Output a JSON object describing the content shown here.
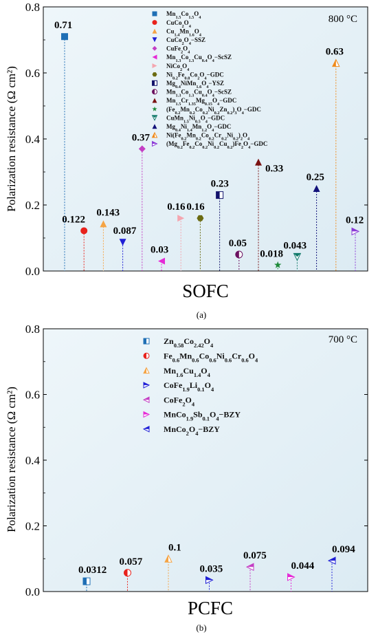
{
  "chart_data": [
    {
      "type": "scatter",
      "panel_label": "(a)",
      "xlabel": "SOFC",
      "ylabel": "Polarization resistance (Ω cm²)",
      "ylim": [
        0,
        0.8
      ],
      "yticks": [
        "0.0",
        "0.2",
        "0.4",
        "0.6",
        "0.8"
      ],
      "annotation": "800 °C",
      "grid": false,
      "legend_position": "top-center",
      "series": [
        {
          "name": "Mn1.5Co1.5O4",
          "label_html": "Mn<tspan baseline-shift='sub' font-size='70%'>1.5</tspan>Co<tspan baseline-shift='sub' font-size='70%'>1.5</tspan>O<tspan baseline-shift='sub' font-size='70%'>4</tspan>",
          "value": 0.71,
          "value_label": "0.71",
          "color": "#1f6fb5",
          "marker": "square"
        },
        {
          "name": "CuCo2O4",
          "label_html": "CuCo<tspan baseline-shift='sub' font-size='70%'>2</tspan>O<tspan baseline-shift='sub' font-size='70%'>4</tspan>",
          "value": 0.122,
          "value_label": "0.122",
          "color": "#e8221c",
          "marker": "circle"
        },
        {
          "name": "Cu1.4Mn1.6O4",
          "label_html": "Cu<tspan baseline-shift='sub' font-size='70%'>1.4</tspan>Mn<tspan baseline-shift='sub' font-size='70%'>1.6</tspan>O<tspan baseline-shift='sub' font-size='70%'>4</tspan>",
          "value": 0.143,
          "value_label": "0.143",
          "color": "#f5a445",
          "marker": "triangle-up"
        },
        {
          "name": "CuCo2O4−SSZ",
          "label_html": "CuCo<tspan baseline-shift='sub' font-size='70%'>2</tspan>O<tspan baseline-shift='sub' font-size='70%'>4</tspan>−SSZ",
          "value": 0.087,
          "value_label": "0.087",
          "color": "#1f1fd6",
          "marker": "triangle-down"
        },
        {
          "name": "CuFe2O4",
          "label_html": "CuFe<tspan baseline-shift='sub' font-size='70%'>2</tspan>O<tspan baseline-shift='sub' font-size='70%'>4</tspan>",
          "value": 0.37,
          "value_label": "0.37",
          "color": "#c43fc4",
          "marker": "diamond"
        },
        {
          "name": "Mn1.3Co1.3Cu0.4O4−ScSZ",
          "label_html": "Mn<tspan baseline-shift='sub' font-size='70%'>1.3</tspan>Co<tspan baseline-shift='sub' font-size='70%'>1.3</tspan>Cu<tspan baseline-shift='sub' font-size='70%'>0.4</tspan>O<tspan baseline-shift='sub' font-size='70%'>4</tspan>−ScSZ",
          "value": 0.03,
          "value_label": "0.03",
          "color": "#e52ad6",
          "marker": "triangle-left"
        },
        {
          "name": "NiCo2O4",
          "label_html": "NiCo<tspan baseline-shift='sub' font-size='70%'>2</tspan>O<tspan baseline-shift='sub' font-size='70%'>4</tspan>",
          "value": 0.16,
          "value_label": "0.16",
          "color": "#f4a6b0",
          "marker": "triangle-right"
        },
        {
          "name": "Ni0.2Fe0.8Co2O4−GDC",
          "label_html": "Ni<tspan baseline-shift='sub' font-size='70%'>0.2</tspan>Fe<tspan baseline-shift='sub' font-size='70%'>0.8</tspan>Co<tspan baseline-shift='sub' font-size='70%'>2</tspan>O<tspan baseline-shift='sub' font-size='70%'>4</tspan>−GDC",
          "value": 0.16,
          "value_label": "0.16",
          "color": "#6b6b12",
          "marker": "hexagon"
        },
        {
          "name": "Mg0.4NiMn1.6O4−YSZ",
          "label_html": "Mg<tspan baseline-shift='sub' font-size='70%'>0.4</tspan>NiMn<tspan baseline-shift='sub' font-size='70%'>1.6</tspan>O<tspan baseline-shift='sub' font-size='70%'>4</tspan>−YSZ",
          "value": 0.23,
          "value_label": "0.23",
          "color": "#12126b",
          "marker": "square-half"
        },
        {
          "name": "Mn1.3Co1.3Cu0.4O4−ScSZ",
          "label_html": "Mn<tspan baseline-shift='sub' font-size='70%'>1.3</tspan>Co<tspan baseline-shift='sub' font-size='70%'>1.3</tspan>Cu<tspan baseline-shift='sub' font-size='70%'>0.4</tspan>O<tspan baseline-shift='sub' font-size='70%'>4</tspan>−ScSZ",
          "value": 0.05,
          "value_label": "0.05",
          "color": "#6b1260",
          "marker": "circle-half"
        },
        {
          "name": "Mn1.5Cr1.35Mg0.15O4−GDC",
          "label_html": "Mn<tspan baseline-shift='sub' font-size='70%'>1.5</tspan>Cr<tspan baseline-shift='sub' font-size='70%'>1.35</tspan>Mg<tspan baseline-shift='sub' font-size='70%'>0.15</tspan>O<tspan baseline-shift='sub' font-size='70%'>4</tspan>−GDC",
          "value": 0.33,
          "value_label": "0.33",
          "color": "#7a1212",
          "marker": "triangle-up"
        },
        {
          "name": "(Fe0.2Mn0.2Co0.2Ni0.2Zn0.2)3O4−GDC",
          "label_html": "(Fe<tspan baseline-shift='sub' font-size='70%'>0.2</tspan>Mn<tspan baseline-shift='sub' font-size='70%'>0.2</tspan>Co<tspan baseline-shift='sub' font-size='70%'>0.2</tspan>Ni<tspan baseline-shift='sub' font-size='70%'>0.2</tspan>Zn<tspan baseline-shift='sub' font-size='70%'>0.2</tspan>)<tspan baseline-shift='sub' font-size='70%'>3</tspan>O<tspan baseline-shift='sub' font-size='70%'>4</tspan>−GDC",
          "value": 0.018,
          "value_label": "0.018",
          "color": "#1e8a3a",
          "marker": "star"
        },
        {
          "name": "CuMn1.5Ni0.5O4−GDC",
          "label_html": "CuMn<tspan baseline-shift='sub' font-size='70%'>1.5</tspan>Ni<tspan baseline-shift='sub' font-size='70%'>0.5</tspan>O<tspan baseline-shift='sub' font-size='70%'>4</tspan>−GDC",
          "value": 0.043,
          "value_label": "0.043",
          "color": "#127a6b",
          "marker": "half-down"
        },
        {
          "name": "Mg0.4Ni1.4Mn1.2O4−GDC",
          "label_html": "Mg<tspan baseline-shift='sub' font-size='70%'>0.4</tspan>Ni<tspan baseline-shift='sub' font-size='70%'>1.4</tspan>Mn<tspan baseline-shift='sub' font-size='70%'>1.2</tspan>O<tspan baseline-shift='sub' font-size='70%'>4</tspan>−GDC",
          "value": 0.25,
          "value_label": "0.25",
          "color": "#12127a",
          "marker": "triangle-up"
        },
        {
          "name": "Ni(Fe0.2Mn0.2Co0.2Cr0.2Ni0.2)2O4",
          "label_html": "Ni(Fe<tspan baseline-shift='sub' font-size='70%'>0.2</tspan>Mn<tspan baseline-shift='sub' font-size='70%'>0.2</tspan>Co<tspan baseline-shift='sub' font-size='70%'>0.2</tspan>Cr<tspan baseline-shift='sub' font-size='70%'>0.2</tspan>Ni<tspan baseline-shift='sub' font-size='70%'>0.2</tspan>)<tspan baseline-shift='sub' font-size='70%'>2</tspan>O<tspan baseline-shift='sub' font-size='70%'>4</tspan>",
          "value": 0.63,
          "value_label": "0.63",
          "color": "#f08a1a",
          "marker": "half-up"
        },
        {
          "name": "(Mg0.2Fe0.2Co0.2Ni0.2Cu0.2)Fe2O4−GDC",
          "label_html": "(Mg<tspan baseline-shift='sub' font-size='70%'>0.2</tspan>Fe<tspan baseline-shift='sub' font-size='70%'>0.2</tspan>Co<tspan baseline-shift='sub' font-size='70%'>0.2</tspan>Ni<tspan baseline-shift='sub' font-size='70%'>0.2</tspan>Cu<tspan baseline-shift='sub' font-size='70%'>0.2</tspan>)Fe<tspan baseline-shift='sub' font-size='70%'>2</tspan>O<tspan baseline-shift='sub' font-size='70%'>4</tspan>−GDC",
          "value": 0.12,
          "value_label": "0.12",
          "color": "#8a3ad6",
          "marker": "half-right"
        }
      ]
    },
    {
      "type": "scatter",
      "panel_label": "(b)",
      "xlabel": "PCFC",
      "ylabel": "Polarization resistance (Ω cm²)",
      "ylim": [
        0,
        0.8
      ],
      "yticks": [
        "0.0",
        "0.2",
        "0.4",
        "0.6",
        "0.8"
      ],
      "annotation": "700 °C",
      "grid": false,
      "legend_position": "top-center",
      "series": [
        {
          "name": "Zn0.58Co2.42O4",
          "label_html": "Zn<tspan baseline-shift='sub' font-size='70%'>0.58</tspan>Co<tspan baseline-shift='sub' font-size='70%'>2.42</tspan>O<tspan baseline-shift='sub' font-size='70%'>4</tspan>",
          "value": 0.0312,
          "value_label": "0.0312",
          "color": "#1f6fb5",
          "marker": "square-half"
        },
        {
          "name": "Fe0.6Mn0.6Co0.6Ni0.6Cr0.6O4",
          "label_html": "Fe<tspan baseline-shift='sub' font-size='70%'>0.6</tspan>Mn<tspan baseline-shift='sub' font-size='70%'>0.6</tspan>Co<tspan baseline-shift='sub' font-size='70%'>0.6</tspan>Ni<tspan baseline-shift='sub' font-size='70%'>0.6</tspan>Cr<tspan baseline-shift='sub' font-size='70%'>0.6</tspan>O<tspan baseline-shift='sub' font-size='70%'>4</tspan>",
          "value": 0.057,
          "value_label": "0.057",
          "color": "#e8221c",
          "marker": "circle-half"
        },
        {
          "name": "Mn1.6Cu1.4O4",
          "label_html": "Mn<tspan baseline-shift='sub' font-size='70%'>1.6</tspan>Cu<tspan baseline-shift='sub' font-size='70%'>1.4</tspan>O<tspan baseline-shift='sub' font-size='70%'>4</tspan>",
          "value": 0.1,
          "value_label": "0.1",
          "color": "#f5a445",
          "marker": "half-up"
        },
        {
          "name": "CoFe1.9Li0.1O4",
          "label_html": "CoFe<tspan baseline-shift='sub' font-size='70%'>1.9</tspan>Li<tspan baseline-shift='sub' font-size='70%'>0.1</tspan>O<tspan baseline-shift='sub' font-size='70%'>4</tspan>",
          "value": 0.035,
          "value_label": "0.035",
          "color": "#1f1fd6",
          "marker": "half-right"
        },
        {
          "name": "CoFe2O4",
          "label_html": "CoFe<tspan baseline-shift='sub' font-size='70%'>2</tspan>O<tspan baseline-shift='sub' font-size='70%'>4</tspan>",
          "value": 0.075,
          "value_label": "0.075",
          "color": "#c43fc4",
          "marker": "half-left"
        },
        {
          "name": "MnCo1.9Sb0.1O4−BZY",
          "label_html": "MnCo<tspan baseline-shift='sub' font-size='70%'>1.9</tspan>Sb<tspan baseline-shift='sub' font-size='70%'>0.1</tspan>O<tspan baseline-shift='sub' font-size='70%'>4</tspan>−BZY",
          "value": 0.044,
          "value_label": "0.044",
          "color": "#e52ad6",
          "marker": "half-right"
        },
        {
          "name": "MnCo2O4−BZY",
          "label_html": "MnCo<tspan baseline-shift='sub' font-size='70%'>2</tspan>O<tspan baseline-shift='sub' font-size='70%'>4</tspan>−BZY",
          "value": 0.094,
          "value_label": "0.094",
          "color": "#1f1fd6",
          "marker": "half-left"
        }
      ]
    }
  ]
}
